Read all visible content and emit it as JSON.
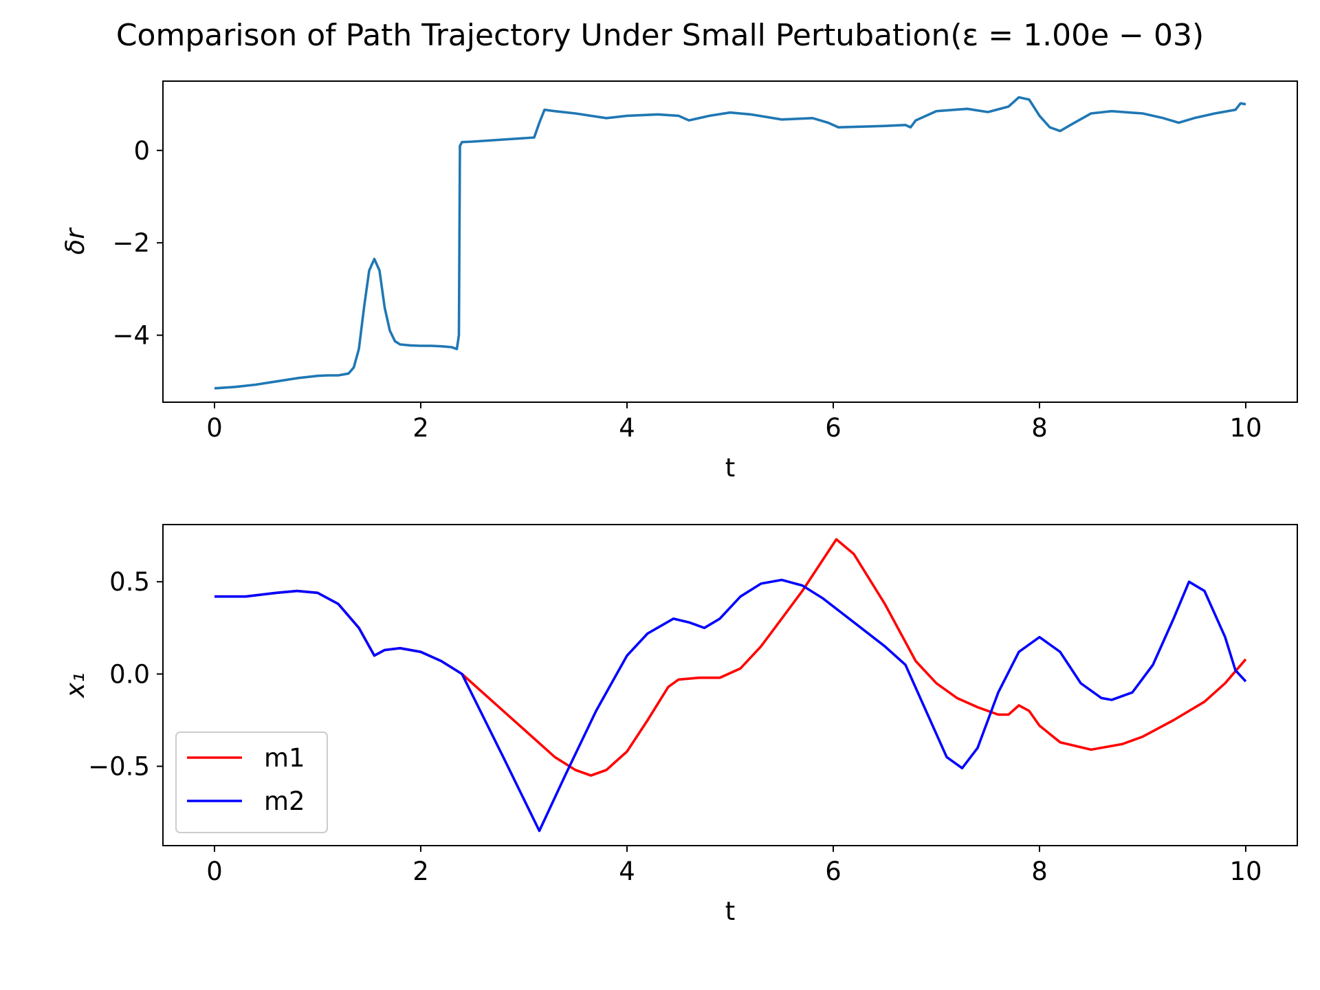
{
  "figure": {
    "title": "Comparison of Path Trajectory Under Small Pertubation(ε = 1.00e − 03)"
  },
  "chart_data": [
    {
      "type": "line",
      "xlabel": "t",
      "ylabel": "δr",
      "xlim": [
        -0.5,
        10.5
      ],
      "ylim": [
        -5.45,
        1.5
      ],
      "xticks": [
        0,
        2,
        4,
        6,
        8,
        10
      ],
      "yticks": [
        -4,
        -2,
        0
      ],
      "xtick_labels": [
        "0",
        "2",
        "4",
        "6",
        "8",
        "10"
      ],
      "ytick_labels": [
        "−4",
        "−2",
        "0"
      ],
      "grid": false,
      "series": [
        {
          "color": "#1f77b4",
          "x": [
            0,
            0.2,
            0.4,
            0.6,
            0.8,
            1.0,
            1.1,
            1.2,
            1.3,
            1.35,
            1.4,
            1.45,
            1.5,
            1.55,
            1.6,
            1.65,
            1.7,
            1.75,
            1.8,
            1.9,
            2.0,
            2.1,
            2.2,
            2.3,
            2.35,
            2.37,
            2.38,
            2.4,
            2.5,
            2.7,
            2.9,
            3.1,
            3.15,
            3.2,
            3.3,
            3.5,
            3.8,
            4.0,
            4.3,
            4.5,
            4.6,
            4.8,
            5.0,
            5.2,
            5.5,
            5.8,
            5.95,
            6.05,
            6.5,
            6.7,
            6.75,
            6.8,
            7.0,
            7.3,
            7.5,
            7.7,
            7.8,
            7.9,
            8.0,
            8.1,
            8.2,
            8.3,
            8.5,
            8.7,
            9.0,
            9.2,
            9.35,
            9.5,
            9.7,
            9.9,
            9.95,
            10.0
          ],
          "y": [
            -5.15,
            -5.12,
            -5.07,
            -5.0,
            -4.93,
            -4.88,
            -4.87,
            -4.87,
            -4.83,
            -4.7,
            -4.3,
            -3.4,
            -2.6,
            -2.35,
            -2.6,
            -3.4,
            -3.9,
            -4.13,
            -4.2,
            -4.22,
            -4.23,
            -4.23,
            -4.24,
            -4.26,
            -4.3,
            -4.0,
            0.1,
            0.18,
            0.19,
            0.22,
            0.25,
            0.28,
            0.6,
            0.88,
            0.85,
            0.8,
            0.7,
            0.75,
            0.78,
            0.75,
            0.65,
            0.75,
            0.82,
            0.78,
            0.67,
            0.7,
            0.6,
            0.5,
            0.53,
            0.55,
            0.5,
            0.65,
            0.85,
            0.9,
            0.83,
            0.95,
            1.15,
            1.1,
            0.75,
            0.5,
            0.42,
            0.55,
            0.8,
            0.85,
            0.8,
            0.7,
            0.6,
            0.7,
            0.8,
            0.88,
            1.02,
            1.0
          ]
        }
      ]
    },
    {
      "type": "line",
      "xlabel": "t",
      "ylabel": "x₁",
      "xlim": [
        -0.5,
        10.5
      ],
      "ylim": [
        -0.93,
        0.81
      ],
      "xticks": [
        0,
        2,
        4,
        6,
        8,
        10
      ],
      "yticks": [
        -0.5,
        0.0,
        0.5
      ],
      "xtick_labels": [
        "0",
        "2",
        "4",
        "6",
        "8",
        "10"
      ],
      "ytick_labels": [
        "−0.5",
        "0.0",
        "0.5"
      ],
      "grid": false,
      "legend": {
        "position": "lower left"
      },
      "series": [
        {
          "name": "m1",
          "color": "#ff0000",
          "x": [
            0,
            0.3,
            0.6,
            0.8,
            1.0,
            1.2,
            1.4,
            1.55,
            1.65,
            1.8,
            2.0,
            2.2,
            2.4,
            2.7,
            3.0,
            3.3,
            3.5,
            3.65,
            3.8,
            4.0,
            4.2,
            4.4,
            4.5,
            4.7,
            4.9,
            5.1,
            5.3,
            5.5,
            5.7,
            5.9,
            6.03,
            6.2,
            6.5,
            6.8,
            7.0,
            7.2,
            7.4,
            7.6,
            7.7,
            7.8,
            7.9,
            8.0,
            8.2,
            8.5,
            8.8,
            9.0,
            9.3,
            9.6,
            9.8,
            10.0
          ],
          "y": [
            0.42,
            0.42,
            0.44,
            0.45,
            0.44,
            0.38,
            0.25,
            0.1,
            0.13,
            0.14,
            0.12,
            0.07,
            0.0,
            -0.15,
            -0.3,
            -0.45,
            -0.52,
            -0.55,
            -0.52,
            -0.42,
            -0.25,
            -0.07,
            -0.03,
            -0.02,
            -0.02,
            0.03,
            0.15,
            0.3,
            0.45,
            0.62,
            0.73,
            0.65,
            0.38,
            0.07,
            -0.05,
            -0.13,
            -0.18,
            -0.22,
            -0.22,
            -0.17,
            -0.2,
            -0.28,
            -0.37,
            -0.41,
            -0.38,
            -0.34,
            -0.25,
            -0.15,
            -0.05,
            0.08
          ]
        },
        {
          "name": "m2",
          "color": "#0000ff",
          "x": [
            0,
            0.3,
            0.6,
            0.8,
            1.0,
            1.2,
            1.4,
            1.55,
            1.65,
            1.8,
            2.0,
            2.2,
            2.4,
            2.8,
            3.15,
            3.4,
            3.7,
            4.0,
            4.2,
            4.45,
            4.6,
            4.75,
            4.9,
            5.1,
            5.3,
            5.5,
            5.7,
            5.9,
            6.2,
            6.5,
            6.7,
            6.9,
            7.1,
            7.25,
            7.4,
            7.6,
            7.8,
            8.0,
            8.2,
            8.4,
            8.6,
            8.7,
            8.9,
            9.1,
            9.3,
            9.45,
            9.6,
            9.8,
            9.9,
            10.0
          ],
          "y": [
            0.42,
            0.42,
            0.44,
            0.45,
            0.44,
            0.38,
            0.25,
            0.1,
            0.13,
            0.14,
            0.12,
            0.07,
            0.0,
            -0.45,
            -0.85,
            -0.55,
            -0.2,
            0.1,
            0.22,
            0.3,
            0.28,
            0.25,
            0.3,
            0.42,
            0.49,
            0.51,
            0.48,
            0.41,
            0.28,
            0.15,
            0.05,
            -0.2,
            -0.45,
            -0.51,
            -0.4,
            -0.1,
            0.12,
            0.2,
            0.12,
            -0.05,
            -0.13,
            -0.14,
            -0.1,
            0.05,
            0.3,
            0.5,
            0.45,
            0.2,
            0.02,
            -0.04
          ]
        }
      ]
    }
  ]
}
